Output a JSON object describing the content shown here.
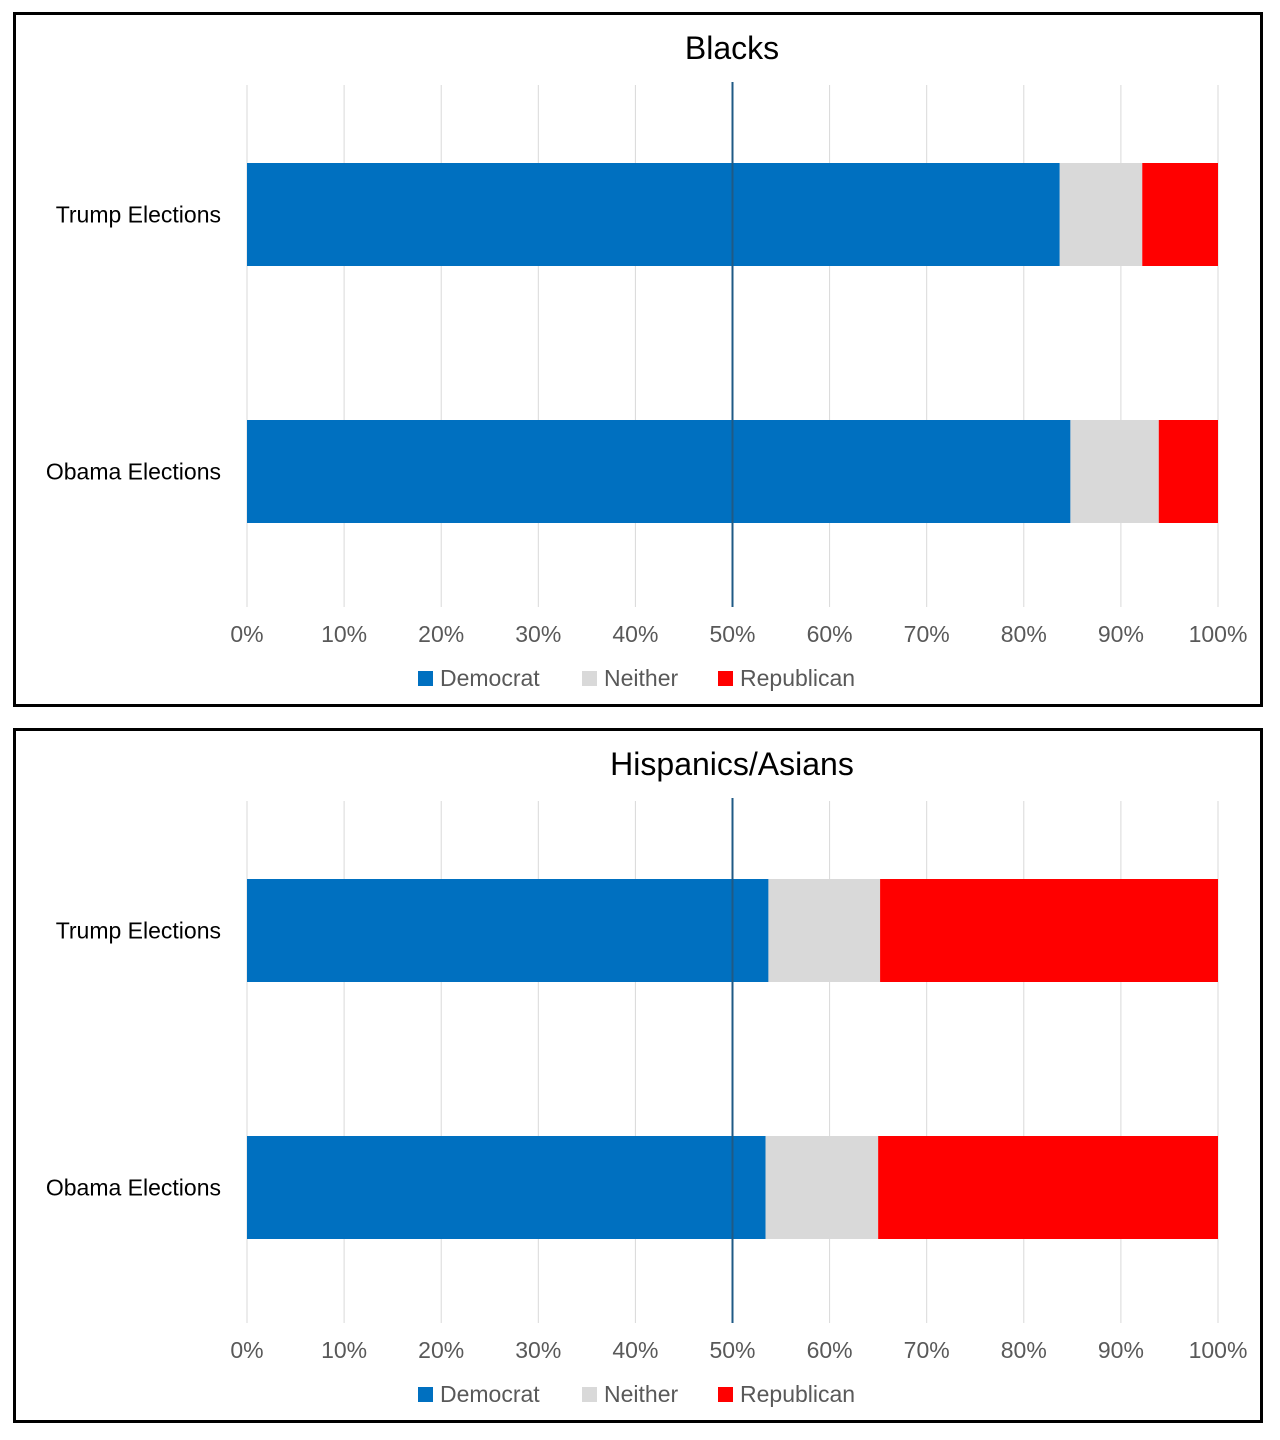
{
  "chart_data": [
    {
      "type": "bar",
      "orientation": "horizontal",
      "stacked": "percent",
      "title": "Blacks",
      "categories": [
        "Trump Elections",
        "Obama Elections"
      ],
      "series": [
        {
          "name": "Democrat",
          "color": "#0070C0",
          "values": [
            83.7,
            84.8
          ]
        },
        {
          "name": "Neither",
          "color": "#D9D9D9",
          "values": [
            8.5,
            9.1
          ]
        },
        {
          "name": "Republican",
          "color": "#FF0000",
          "values": [
            7.8,
            6.1
          ]
        }
      ],
      "xlim": [
        0,
        100
      ],
      "x_ticks": [
        "0%",
        "10%",
        "20%",
        "30%",
        "40%",
        "50%",
        "60%",
        "70%",
        "80%",
        "90%",
        "100%"
      ],
      "reference_line": {
        "x": 50,
        "color": "#1F5A85"
      },
      "grid": true,
      "legend": "bottom"
    },
    {
      "type": "bar",
      "orientation": "horizontal",
      "stacked": "percent",
      "title": "Hispanics/Asians",
      "categories": [
        "Trump Elections",
        "Obama Elections"
      ],
      "series": [
        {
          "name": "Democrat",
          "color": "#0070C0",
          "values": [
            53.7,
            53.4
          ]
        },
        {
          "name": "Neither",
          "color": "#D9D9D9",
          "values": [
            11.5,
            11.6
          ]
        },
        {
          "name": "Republican",
          "color": "#FF0000",
          "values": [
            34.8,
            35.0
          ]
        }
      ],
      "xlim": [
        0,
        100
      ],
      "x_ticks": [
        "0%",
        "10%",
        "20%",
        "30%",
        "40%",
        "50%",
        "60%",
        "70%",
        "80%",
        "90%",
        "100%"
      ],
      "reference_line": {
        "x": 50,
        "color": "#1F5A85"
      },
      "grid": true,
      "legend": "bottom"
    }
  ]
}
